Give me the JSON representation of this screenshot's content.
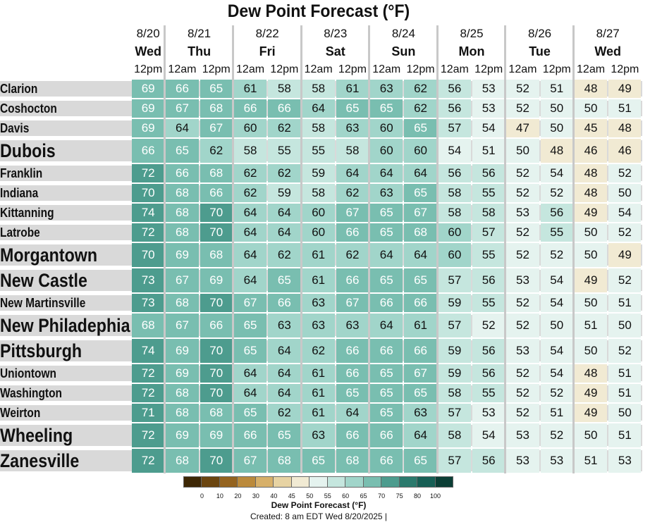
{
  "chart_data": {
    "type": "heatmap",
    "title": "Dew Point Forecast (°F)",
    "columns": [
      {
        "date": "8/20",
        "day": "Wed",
        "time": "12pm"
      },
      {
        "date": "8/21",
        "day": "Thu",
        "time": "12am"
      },
      {
        "date": "",
        "day": "",
        "time": "12pm"
      },
      {
        "date": "8/22",
        "day": "Fri",
        "time": "12am"
      },
      {
        "date": "",
        "day": "",
        "time": "12pm"
      },
      {
        "date": "8/23",
        "day": "Sat",
        "time": "12am"
      },
      {
        "date": "",
        "day": "",
        "time": "12pm"
      },
      {
        "date": "8/24",
        "day": "Sun",
        "time": "12am"
      },
      {
        "date": "",
        "day": "",
        "time": "12pm"
      },
      {
        "date": "8/25",
        "day": "Mon",
        "time": "12am"
      },
      {
        "date": "",
        "day": "",
        "time": "12pm"
      },
      {
        "date": "8/26",
        "day": "Tue",
        "time": "12am"
      },
      {
        "date": "",
        "day": "",
        "time": "12pm"
      },
      {
        "date": "8/27",
        "day": "Wed",
        "time": "12am"
      },
      {
        "date": "",
        "day": "",
        "time": "12pm"
      }
    ],
    "rows": [
      {
        "city": "Clarion",
        "size": "small",
        "values": [
          69,
          66,
          65,
          61,
          58,
          58,
          61,
          63,
          62,
          56,
          53,
          52,
          51,
          48,
          49
        ]
      },
      {
        "city": "Coshocton",
        "size": "small",
        "values": [
          69,
          67,
          68,
          66,
          66,
          64,
          65,
          65,
          62,
          56,
          53,
          52,
          50,
          50,
          51
        ]
      },
      {
        "city": "Davis",
        "size": "small",
        "values": [
          69,
          64,
          67,
          60,
          62,
          58,
          63,
          60,
          65,
          57,
          54,
          47,
          50,
          45,
          48
        ]
      },
      {
        "city": "Dubois",
        "size": "large",
        "values": [
          66,
          65,
          62,
          58,
          55,
          55,
          58,
          60,
          60,
          54,
          51,
          50,
          48,
          46,
          46
        ]
      },
      {
        "city": "Franklin",
        "size": "small",
        "values": [
          72,
          66,
          68,
          62,
          62,
          59,
          64,
          64,
          64,
          56,
          56,
          52,
          54,
          48,
          52
        ]
      },
      {
        "city": "Indiana",
        "size": "small",
        "values": [
          70,
          68,
          66,
          62,
          59,
          58,
          62,
          63,
          65,
          58,
          55,
          52,
          52,
          48,
          50
        ]
      },
      {
        "city": "Kittanning",
        "size": "small",
        "values": [
          74,
          68,
          70,
          64,
          64,
          60,
          67,
          65,
          67,
          58,
          58,
          53,
          56,
          49,
          54
        ]
      },
      {
        "city": "Latrobe",
        "size": "small",
        "values": [
          72,
          68,
          70,
          64,
          64,
          60,
          66,
          65,
          68,
          60,
          57,
          52,
          55,
          50,
          52
        ]
      },
      {
        "city": "Morgantown",
        "size": "large",
        "values": [
          70,
          69,
          68,
          64,
          62,
          61,
          62,
          64,
          64,
          60,
          55,
          52,
          52,
          50,
          49
        ]
      },
      {
        "city": "New Castle",
        "size": "large",
        "values": [
          73,
          67,
          69,
          64,
          65,
          61,
          66,
          65,
          65,
          57,
          56,
          53,
          54,
          49,
          52
        ]
      },
      {
        "city": "New Martinsville",
        "size": "small",
        "values": [
          73,
          68,
          70,
          67,
          66,
          63,
          67,
          66,
          66,
          59,
          55,
          52,
          54,
          50,
          51
        ]
      },
      {
        "city": "New Philadephia",
        "size": "large",
        "values": [
          68,
          67,
          66,
          65,
          63,
          63,
          63,
          64,
          61,
          57,
          52,
          52,
          50,
          51,
          50
        ]
      },
      {
        "city": "Pittsburgh",
        "size": "large",
        "values": [
          74,
          69,
          70,
          65,
          64,
          62,
          66,
          66,
          66,
          59,
          56,
          53,
          54,
          50,
          52
        ]
      },
      {
        "city": "Uniontown",
        "size": "small",
        "values": [
          72,
          69,
          70,
          64,
          64,
          61,
          66,
          65,
          67,
          59,
          56,
          52,
          54,
          48,
          51
        ]
      },
      {
        "city": "Washington",
        "size": "small",
        "values": [
          72,
          68,
          70,
          64,
          64,
          61,
          65,
          65,
          65,
          58,
          55,
          52,
          52,
          49,
          51
        ]
      },
      {
        "city": "Weirton",
        "size": "small",
        "values": [
          71,
          68,
          68,
          65,
          62,
          61,
          64,
          65,
          63,
          57,
          53,
          52,
          51,
          49,
          50
        ]
      },
      {
        "city": "Wheeling",
        "size": "large",
        "values": [
          72,
          69,
          69,
          66,
          65,
          63,
          66,
          66,
          64,
          58,
          54,
          53,
          52,
          50,
          51
        ]
      },
      {
        "city": "Zanesville",
        "size": "large",
        "values": [
          72,
          68,
          70,
          67,
          68,
          65,
          68,
          66,
          65,
          57,
          56,
          53,
          53,
          51,
          53
        ]
      }
    ],
    "colorbar": {
      "label": "Dew Point Forecast (°F)",
      "ticks": [
        "0",
        "10",
        "20",
        "30",
        "40",
        "45",
        "50",
        "55",
        "60",
        "65",
        "70",
        "75",
        "80",
        "100"
      ],
      "colors": [
        "#3d2705",
        "#6b4510",
        "#94631f",
        "#bb8a3c",
        "#d7b06a",
        "#e7d3a3",
        "#f1ead3",
        "#e5f3ef",
        "#c5e6de",
        "#a1d5ca",
        "#79beb0",
        "#4d9c8e",
        "#2b7a6d",
        "#175f55",
        "#0b3e35"
      ]
    }
  },
  "footer": {
    "created": "Created: 8 am EDT Wed 8/20/2025  |"
  }
}
